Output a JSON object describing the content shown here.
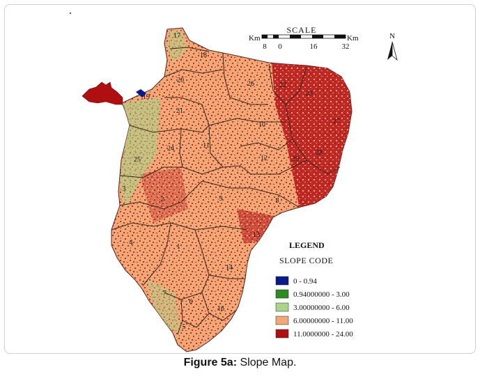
{
  "caption": {
    "label": "Figure 5a:",
    "text": "Slope Map."
  },
  "north_label": "N",
  "scale": {
    "title": "SCALE",
    "unit_left": "Km",
    "unit_right": "Km",
    "ticks": [
      "8",
      "0",
      "16",
      "32"
    ]
  },
  "legend": {
    "title": "LEGEND",
    "subtitle": "SLOPE CODE",
    "items": [
      {
        "label": "0 - 0.94",
        "color": "#0a1a8c"
      },
      {
        "label": "0.94000000 - 3.00",
        "color": "#2e8b22"
      },
      {
        "label": "3.00000000 - 6.00",
        "color": "#a8d58a"
      },
      {
        "label": "6.00000000 - 11.00",
        "color": "#f0a878"
      },
      {
        "label": "11.0000000 - 24.00",
        "color": "#b00f12"
      }
    ]
  },
  "subbasins": [
    "17",
    "18",
    "20",
    "19",
    "21",
    "26",
    "22",
    "23",
    "10",
    "11",
    "24",
    "25",
    "12",
    "27",
    "28",
    "29",
    "3",
    "9",
    "8",
    "2",
    "13",
    "4",
    "1",
    "14",
    "7",
    "6",
    "16",
    "5"
  ]
}
